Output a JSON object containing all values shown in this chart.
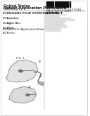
{
  "background_color": "#f5f5f0",
  "page_bg": "#ffffff",
  "title_line1": "United States",
  "title_line2": "Patent Application Publication",
  "barcode_color": "#111111",
  "header_text_color": "#333333",
  "section_label_color": "#222222",
  "diagram_line_color": "#555555",
  "diagram_fill_light": "#e8e8e8",
  "diagram_fill_dark": "#aaaaaa",
  "text_small": 3.5,
  "text_medium": 4.5,
  "text_large": 5.5,
  "pub_number": "US 2011/0004079 A1",
  "pub_date": "Jan. 6, 2011",
  "title_label": "REUSABLE PULSE OXIMETRY SENSOR"
}
